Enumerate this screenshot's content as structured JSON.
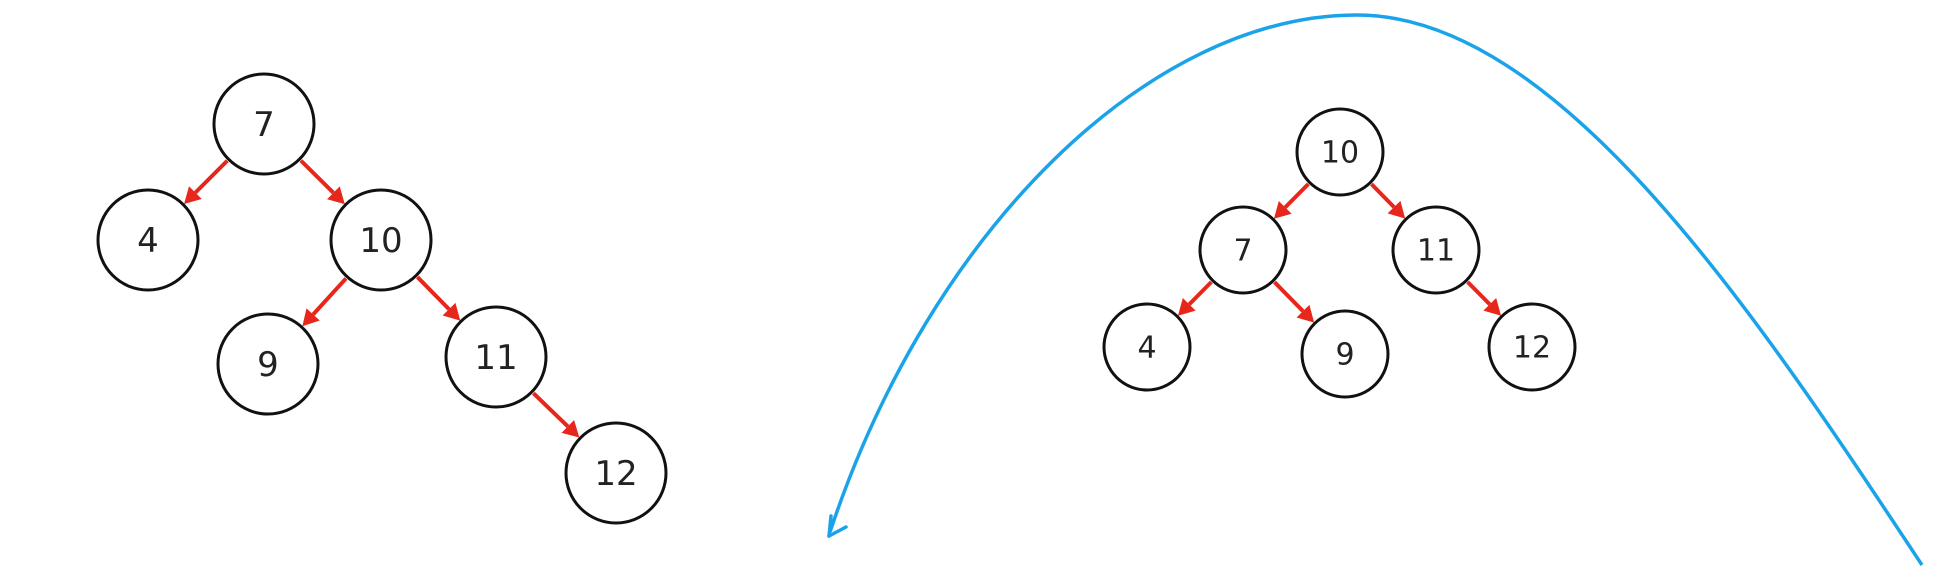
{
  "colors": {
    "edge": "#e8271c",
    "rotation_curve": "#1aa3e8",
    "node_stroke": "#111111",
    "node_text": "#222222",
    "background": "#ffffff"
  },
  "trees": [
    {
      "id": "before",
      "nodes": [
        {
          "id": "n7",
          "label": "7"
        },
        {
          "id": "n4",
          "label": "4"
        },
        {
          "id": "n10",
          "label": "10"
        },
        {
          "id": "n9",
          "label": "9"
        },
        {
          "id": "n11",
          "label": "11"
        },
        {
          "id": "n12",
          "label": "12"
        }
      ],
      "edges": [
        {
          "from": "n7",
          "to": "n4"
        },
        {
          "from": "n7",
          "to": "n10"
        },
        {
          "from": "n10",
          "to": "n9"
        },
        {
          "from": "n10",
          "to": "n11"
        },
        {
          "from": "n11",
          "to": "n12"
        }
      ]
    },
    {
      "id": "after",
      "nodes": [
        {
          "id": "m10",
          "label": "10"
        },
        {
          "id": "m7",
          "label": "7"
        },
        {
          "id": "m11",
          "label": "11"
        },
        {
          "id": "m4",
          "label": "4"
        },
        {
          "id": "m9",
          "label": "9"
        },
        {
          "id": "m12",
          "label": "12"
        }
      ],
      "edges": [
        {
          "from": "m10",
          "to": "m7"
        },
        {
          "from": "m10",
          "to": "m11"
        },
        {
          "from": "m7",
          "to": "m4"
        },
        {
          "from": "m7",
          "to": "m9"
        },
        {
          "from": "m11",
          "to": "m12"
        }
      ]
    }
  ],
  "rotation_arrow": {
    "direction": "left",
    "meaning": "left-rotation"
  }
}
